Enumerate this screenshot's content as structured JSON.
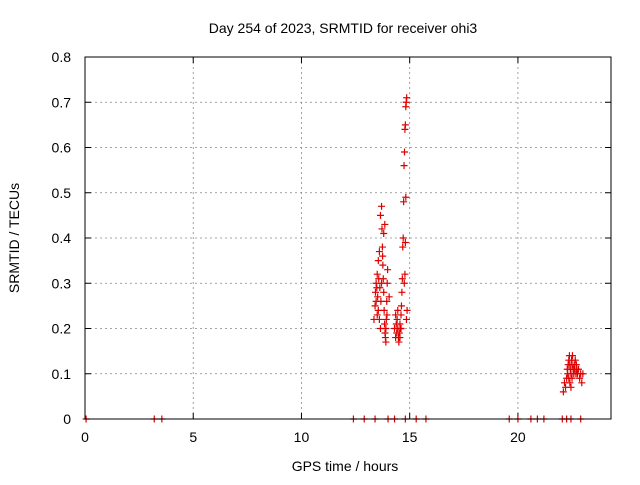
{
  "chart_data": {
    "type": "scatter",
    "title": "Day 254 of 2023, SRMTID for receiver ohi3",
    "xlabel": "GPS time / hours",
    "ylabel": "SRMTID / TECUs",
    "xlim": [
      0,
      24.3
    ],
    "ylim": [
      0,
      0.8
    ],
    "xticks": [
      0,
      5,
      10,
      15,
      20
    ],
    "xtick_labels": [
      "0",
      "5",
      "10",
      "15",
      "20"
    ],
    "yticks": [
      0,
      0.1,
      0.2,
      0.3,
      0.4,
      0.5,
      0.6,
      0.7,
      0.8
    ],
    "ytick_labels": [
      "0",
      "0.1",
      "0.2",
      "0.3",
      "0.4",
      "0.5",
      "0.6",
      "0.7",
      "0.8"
    ],
    "grid": true,
    "marker": "+",
    "color": "#dd0000",
    "series": [
      {
        "name": "SRMTID",
        "points": [
          [
            0.05,
            0
          ],
          [
            3.2,
            0
          ],
          [
            3.55,
            0
          ],
          [
            12.4,
            0
          ],
          [
            12.9,
            0
          ],
          [
            13.4,
            0
          ],
          [
            14.0,
            0
          ],
          [
            14.3,
            0
          ],
          [
            14.8,
            0
          ],
          [
            15.3,
            0
          ],
          [
            15.75,
            0
          ],
          [
            19.6,
            0
          ],
          [
            20.0,
            0
          ],
          [
            20.6,
            0
          ],
          [
            20.9,
            0
          ],
          [
            21.2,
            0
          ],
          [
            22.05,
            0
          ],
          [
            22.25,
            0
          ],
          [
            22.45,
            0
          ],
          [
            22.9,
            0
          ],
          [
            13.35,
            0.22
          ],
          [
            13.4,
            0.25
          ],
          [
            13.42,
            0.28
          ],
          [
            13.45,
            0.3
          ],
          [
            13.48,
            0.29
          ],
          [
            13.5,
            0.32
          ],
          [
            13.52,
            0.27
          ],
          [
            13.55,
            0.35
          ],
          [
            13.57,
            0.31
          ],
          [
            13.6,
            0.37
          ],
          [
            13.62,
            0.29
          ],
          [
            13.65,
            0.45
          ],
          [
            13.67,
            0.26
          ],
          [
            13.7,
            0.47
          ],
          [
            13.72,
            0.42
          ],
          [
            13.74,
            0.38
          ],
          [
            13.76,
            0.34
          ],
          [
            13.78,
            0.31
          ],
          [
            13.8,
            0.28
          ],
          [
            13.82,
            0.24
          ],
          [
            13.84,
            0.21
          ],
          [
            13.86,
            0.19
          ],
          [
            13.88,
            0.18
          ],
          [
            13.9,
            0.2
          ],
          [
            13.92,
            0.22
          ],
          [
            13.94,
            0.26
          ],
          [
            13.96,
            0.3
          ],
          [
            13.98,
            0.33
          ],
          [
            13.6,
            0.22
          ],
          [
            13.65,
            0.2
          ],
          [
            13.7,
            0.3
          ],
          [
            13.75,
            0.36
          ],
          [
            13.8,
            0.41
          ],
          [
            13.85,
            0.43
          ],
          [
            13.9,
            0.17
          ],
          [
            13.95,
            0.23
          ],
          [
            14.05,
            0.27
          ],
          [
            13.55,
            0.24
          ],
          [
            13.5,
            0.23
          ],
          [
            13.45,
            0.26
          ],
          [
            14.3,
            0.2
          ],
          [
            14.35,
            0.18
          ],
          [
            14.38,
            0.21
          ],
          [
            14.4,
            0.19
          ],
          [
            14.42,
            0.22
          ],
          [
            14.45,
            0.2
          ],
          [
            14.48,
            0.18
          ],
          [
            14.5,
            0.17
          ],
          [
            14.52,
            0.19
          ],
          [
            14.55,
            0.21
          ],
          [
            14.58,
            0.2
          ],
          [
            14.6,
            0.23
          ],
          [
            14.62,
            0.25
          ],
          [
            14.64,
            0.28
          ],
          [
            14.66,
            0.31
          ],
          [
            14.68,
            0.38
          ],
          [
            14.7,
            0.4
          ],
          [
            14.72,
            0.48
          ],
          [
            14.74,
            0.56
          ],
          [
            14.76,
            0.59
          ],
          [
            14.78,
            0.64
          ],
          [
            14.8,
            0.65
          ],
          [
            14.82,
            0.69
          ],
          [
            14.84,
            0.7
          ],
          [
            14.86,
            0.71
          ],
          [
            14.75,
            0.3
          ],
          [
            14.78,
            0.32
          ],
          [
            14.8,
            0.39
          ],
          [
            14.82,
            0.49
          ],
          [
            14.85,
            0.22
          ],
          [
            14.88,
            0.24
          ],
          [
            14.35,
            0.23
          ],
          [
            14.45,
            0.24
          ],
          [
            14.55,
            0.18
          ],
          [
            14.6,
            0.2
          ],
          [
            22.1,
            0.06
          ],
          [
            22.15,
            0.08
          ],
          [
            22.2,
            0.07
          ],
          [
            22.25,
            0.09
          ],
          [
            22.28,
            0.11
          ],
          [
            22.3,
            0.1
          ],
          [
            22.32,
            0.12
          ],
          [
            22.35,
            0.13
          ],
          [
            22.38,
            0.14
          ],
          [
            22.4,
            0.12
          ],
          [
            22.42,
            0.11
          ],
          [
            22.45,
            0.1
          ],
          [
            22.48,
            0.13
          ],
          [
            22.5,
            0.12
          ],
          [
            22.52,
            0.14
          ],
          [
            22.55,
            0.11
          ],
          [
            22.58,
            0.1
          ],
          [
            22.6,
            0.12
          ],
          [
            22.62,
            0.11
          ],
          [
            22.65,
            0.13
          ],
          [
            22.68,
            0.1
          ],
          [
            22.7,
            0.12
          ],
          [
            22.72,
            0.11
          ],
          [
            22.75,
            0.1
          ],
          [
            22.8,
            0.11
          ],
          [
            22.85,
            0.09
          ],
          [
            22.9,
            0.1
          ],
          [
            22.95,
            0.08
          ],
          [
            23.0,
            0.1
          ],
          [
            22.35,
            0.09
          ],
          [
            22.4,
            0.08
          ],
          [
            22.45,
            0.07
          ],
          [
            22.5,
            0.09
          ]
        ]
      }
    ]
  }
}
